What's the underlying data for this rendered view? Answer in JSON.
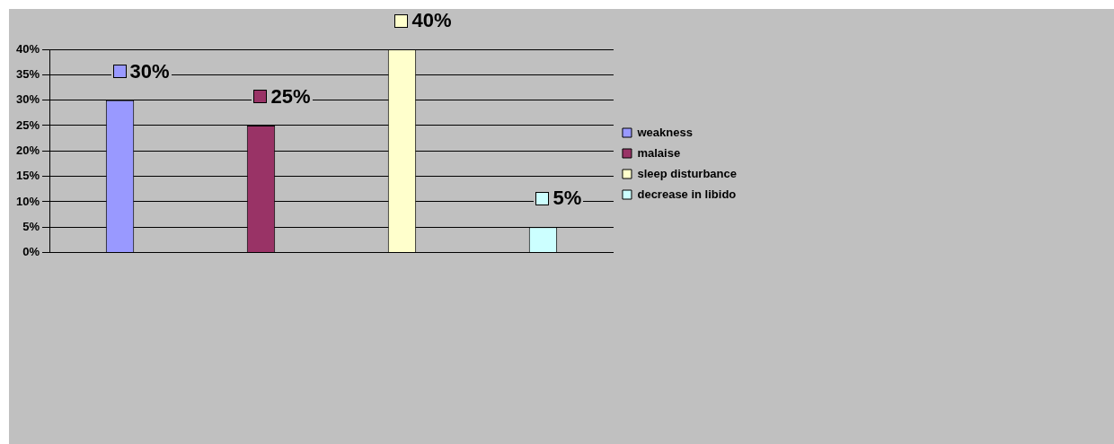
{
  "chart_data": {
    "type": "bar",
    "categories": [
      null,
      null,
      null,
      null
    ],
    "series": [
      {
        "name": "weakness",
        "color": "#9999ff",
        "values": [
          30,
          null,
          null,
          null
        ],
        "value_labels": [
          "30%",
          null,
          null,
          null
        ]
      },
      {
        "name": "malaise",
        "color": "#993366",
        "values": [
          null,
          25,
          null,
          null
        ],
        "value_labels": [
          null,
          "25%",
          null,
          null
        ]
      },
      {
        "name": "sleep disturbance",
        "color": "#ffffcc",
        "values": [
          null,
          null,
          40,
          null
        ],
        "value_labels": [
          null,
          null,
          "40%",
          null
        ]
      },
      {
        "name": "decrease in libido",
        "color": "#ccffff",
        "values": [
          null,
          null,
          null,
          5
        ],
        "value_labels": [
          null,
          null,
          null,
          "5%"
        ]
      }
    ],
    "ylim": [
      0,
      40
    ],
    "yticks": [
      {
        "value": 0,
        "label": "0%"
      },
      {
        "value": 5,
        "label": "5%"
      },
      {
        "value": 10,
        "label": "10%"
      },
      {
        "value": 15,
        "label": "15%"
      },
      {
        "value": 20,
        "label": "20%"
      },
      {
        "value": 25,
        "label": "25%"
      },
      {
        "value": 30,
        "label": "30%"
      },
      {
        "value": 35,
        "label": "35%"
      },
      {
        "value": 40,
        "label": "40%"
      }
    ],
    "grid": "y",
    "legend": "right"
  }
}
